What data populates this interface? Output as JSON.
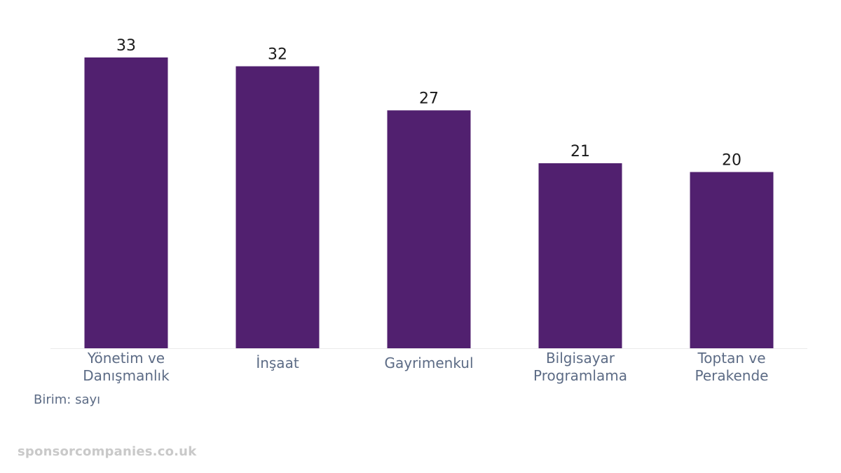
{
  "chart_data": {
    "type": "bar",
    "categories": [
      [
        "Yönetim ve",
        "Danışmanlık"
      ],
      [
        "İnşaat"
      ],
      [
        "Gayrimenkul"
      ],
      [
        "Bilgisayar",
        "Programlama"
      ],
      [
        "Toptan ve",
        "Perakende"
      ]
    ],
    "values": [
      33,
      32,
      27,
      21,
      20
    ],
    "value_labels": [
      "33",
      "32",
      "27",
      "21",
      "20"
    ],
    "ylim": [
      0,
      33
    ],
    "grid": false,
    "legend": "none",
    "bar_color": "#51206f",
    "baseline_color": "#ebebeb"
  },
  "unit_text": "Birim: sayı",
  "watermark": "sponsorcompanies.co.uk"
}
